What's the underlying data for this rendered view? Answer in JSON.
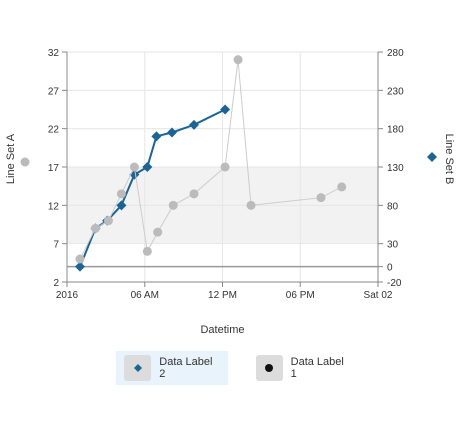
{
  "chart_data": {
    "type": "line",
    "x_axis": {
      "label": "Datetime",
      "ticks": [
        "2016",
        "06 AM",
        "12 PM",
        "06 PM",
        "Sat 02"
      ],
      "range_hours": [
        0,
        24
      ]
    },
    "y_left": {
      "label": "Line Set A",
      "ticks": [
        "2",
        "7",
        "12",
        "17",
        "22",
        "27",
        "32"
      ],
      "range": [
        2,
        32
      ]
    },
    "y_right": {
      "label": "Line Set B",
      "ticks": [
        "-20",
        "0",
        "30",
        "80",
        "130",
        "180",
        "230",
        "280"
      ],
      "range": [
        -20,
        280
      ]
    },
    "band": {
      "axis": "right",
      "from": 30,
      "to": 130
    },
    "series": [
      {
        "name": "Data Label 2",
        "axis": "left",
        "color": "#1a6496",
        "marker": "diamond",
        "x_hours": [
          1,
          2.2,
          3.1,
          4.2,
          5.2,
          6.2,
          6.9,
          8.1,
          9.8,
          12.2
        ],
        "y": [
          4,
          9,
          10,
          12,
          16,
          17,
          21,
          21.5,
          22.5,
          24.5
        ]
      },
      {
        "name": "Data Label 1",
        "axis": "right",
        "color": "#bbbbbb",
        "marker": "circle",
        "x_hours": [
          1.0,
          2.2,
          3.2,
          4.2,
          5.2,
          6.2,
          7.0,
          8.2,
          9.8,
          12.2,
          13.2,
          14.2,
          19.6,
          21.2
        ],
        "y": [
          10,
          50,
          60,
          95,
          130,
          20,
          45,
          80,
          95,
          130,
          270,
          80,
          90,
          104
        ]
      }
    ],
    "legend": {
      "position": "bottom",
      "items": [
        {
          "label": "Data Label 2",
          "marker": "diamond",
          "color": "#1a6496",
          "active": true
        },
        {
          "label": "Data Label 1",
          "marker": "circle",
          "color": "#111111",
          "active": false
        }
      ]
    },
    "grid": true
  }
}
